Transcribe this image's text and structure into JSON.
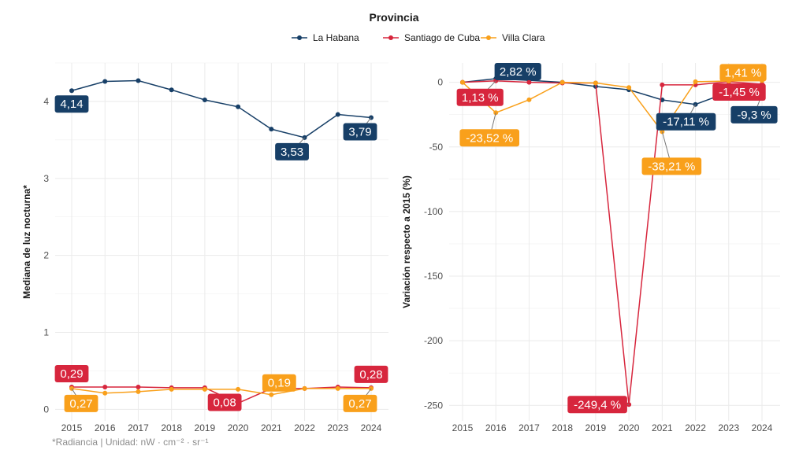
{
  "legend": {
    "title": "Provincia",
    "position": "top"
  },
  "colors": {
    "La Habana": "#173f67",
    "Santiago de Cuba": "#d7263d",
    "Villa Clara": "#f9a01b"
  },
  "chart_data": [
    {
      "type": "line",
      "xlabel": "",
      "ylabel": "Mediana de luz nocturna*",
      "caption": "*Radiancia | Unidad:  nW · cm⁻² · sr⁻¹",
      "categories": [
        "2015",
        "2016",
        "2017",
        "2018",
        "2019",
        "2020",
        "2021",
        "2022",
        "2023",
        "2024"
      ],
      "ylim": [
        -0.15,
        4.5
      ],
      "yticks": [
        "0",
        "1",
        "2",
        "3",
        "4"
      ],
      "grid": true,
      "series": [
        {
          "name": "La Habana",
          "values": [
            4.14,
            4.26,
            4.27,
            4.15,
            4.02,
            3.93,
            3.64,
            3.53,
            3.83,
            3.79
          ],
          "labels": {
            "0": "4,14",
            "7": "3,53",
            "9": "3,79"
          }
        },
        {
          "name": "Santiago de Cuba",
          "values": [
            0.29,
            0.29,
            0.29,
            0.28,
            0.28,
            0.08,
            0.27,
            0.27,
            0.29,
            0.28
          ],
          "labels": {
            "0": "0,29",
            "5": "0,08",
            "9": "0,28"
          }
        },
        {
          "name": "Villa Clara",
          "values": [
            0.27,
            0.21,
            0.23,
            0.26,
            0.26,
            0.26,
            0.19,
            0.27,
            0.27,
            0.27
          ],
          "labels": {
            "0": "0,27",
            "6": "0,19",
            "9": "0,27"
          }
        }
      ]
    },
    {
      "type": "line",
      "xlabel": "",
      "ylabel": "Variación respecto a 2015 (%)",
      "categories": [
        "2015",
        "2016",
        "2017",
        "2018",
        "2019",
        "2020",
        "2021",
        "2022",
        "2023",
        "2024"
      ],
      "ylim": [
        -262,
        15
      ],
      "yticks": [
        "0",
        "-50",
        "-100",
        "-150",
        "-200",
        "-250"
      ],
      "grid": true,
      "series": [
        {
          "name": "La Habana",
          "values": [
            0,
            2.82,
            1.5,
            0,
            -3.2,
            -5.8,
            -13.6,
            -17.11,
            -7.5,
            -9.3
          ],
          "labels": {
            "1": "2,82 %",
            "7": "-17,11 %",
            "9": "-9,3 %"
          }
        },
        {
          "name": "Santiago de Cuba",
          "values": [
            0,
            1.13,
            0,
            -0.5,
            -0.5,
            -249.4,
            -2,
            -2,
            0.5,
            -1.45
          ],
          "labels": {
            "1": "1,13 %",
            "5": "-249,4 %",
            "9": "-1,45 %"
          }
        },
        {
          "name": "Villa Clara",
          "values": [
            0,
            -23.52,
            -13.5,
            0,
            -0.5,
            -4,
            -38.21,
            0.5,
            1,
            1.41
          ],
          "labels": {
            "1": "-23,52 %",
            "6": "-38,21 %",
            "9": "1,41 %"
          }
        }
      ]
    }
  ]
}
